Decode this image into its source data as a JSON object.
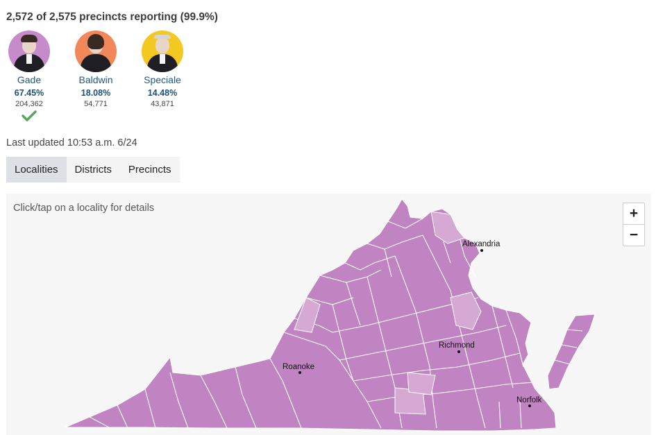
{
  "reporting": "2,572 of 2,575 precincts reporting (99.9%)",
  "candidates": [
    {
      "name": "Gade",
      "pct": "67.45%",
      "votes": "204,362",
      "winner": true,
      "photo_bg": "#c58bcb",
      "icon": "checkmark-icon",
      "check_color": "#5aa55a"
    },
    {
      "name": "Baldwin",
      "pct": "18.08%",
      "votes": "54,771",
      "winner": false,
      "photo_bg": "#f2875a"
    },
    {
      "name": "Speciale",
      "pct": "14.48%",
      "votes": "43,871",
      "winner": false,
      "photo_bg": "#f3c820"
    }
  ],
  "updated": "Last updated 10:53 a.m. 6/24",
  "tabs": [
    "Localities",
    "Districts",
    "Precincts"
  ],
  "active_tab": "Localities",
  "map": {
    "hint": "Click/tap on a locality for details",
    "zoom_in": "+",
    "zoom_out": "−",
    "cities": [
      "Alexandria",
      "Richmond",
      "Roanoke",
      "Norfolk"
    ],
    "colors": {
      "gade": "#bf84c1",
      "light": "#d6a9d4",
      "border": "#ffffff"
    }
  }
}
